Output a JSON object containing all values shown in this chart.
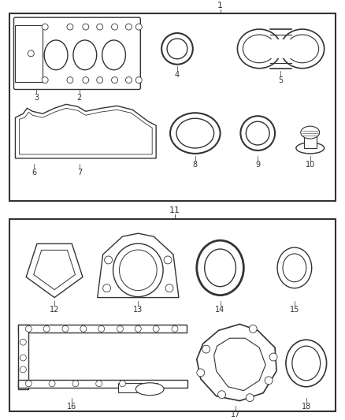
{
  "bg_color": "#ffffff",
  "line_color": "#333333",
  "fig_w": 4.38,
  "fig_h": 5.33,
  "dpi": 100
}
